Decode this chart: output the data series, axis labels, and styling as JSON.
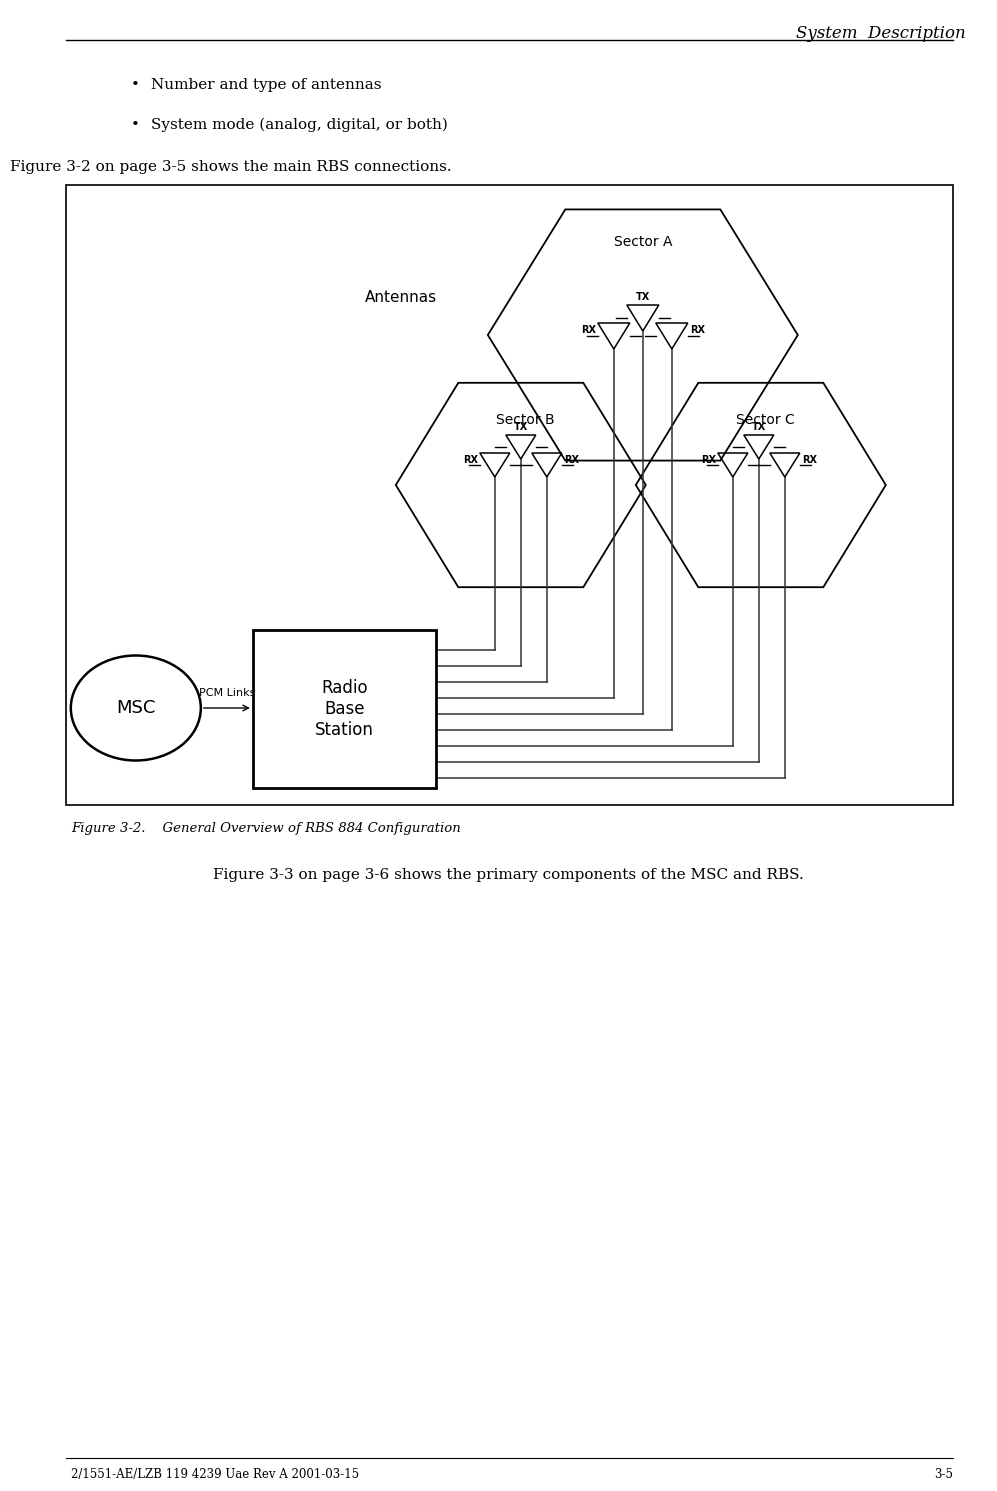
{
  "title": "System  Description",
  "bullet1": "Number and type of antennas",
  "bullet2": "System mode (analog, digital, or both)",
  "fig_intro": "Figure 3-2 on page 3-5 shows the main RBS connections.",
  "fig_caption": "Figure 3-2.    General Overview of RBS 884 Configuration",
  "fig_after": "Figure 3-3 on page 3-6 shows the primary components of the MSC and RBS.",
  "footer_left": "2/1551-AE/LZB 119 4239 Uae Rev A 2001-03-15",
  "footer_right": "3-5",
  "bg_color": "#ffffff"
}
